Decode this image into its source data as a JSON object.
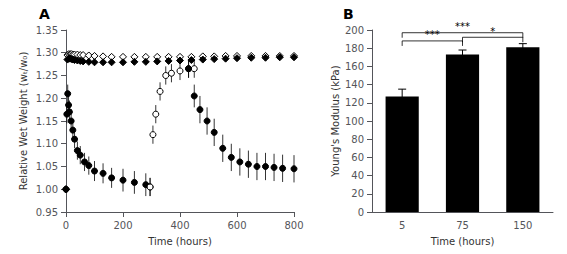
{
  "chart_data": [
    {
      "type": "scatter",
      "title": "A",
      "xlabel": "Time (hours)",
      "ylabel": "Relative Wet Weight (wₜ/w₀)",
      "xlim": [
        0,
        800
      ],
      "xticks": [
        0,
        200,
        400,
        600,
        800
      ],
      "ylim": [
        0.95,
        1.35
      ],
      "yticks": [
        0.95,
        {
          "value": 1.0,
          "label": "1.00"
        },
        1.05,
        {
          "value": 1.1,
          "label": "1.10"
        },
        1.15,
        {
          "value": 1.2,
          "label": "1.20"
        },
        1.25,
        {
          "value": 1.3,
          "label": "1.30"
        },
        1.35
      ],
      "grid": false,
      "series": [
        {
          "type": "scatter",
          "marker": "open_diamond",
          "color": "#000000",
          "x": [
            0,
            5,
            10,
            15,
            20,
            25,
            30,
            40,
            50,
            60,
            80,
            100,
            130,
            160,
            200,
            240,
            280,
            320,
            360,
            400,
            440,
            480,
            520,
            560,
            600,
            650,
            700,
            750,
            800
          ],
          "values": [
            1.0,
            1.295,
            1.297,
            1.297,
            1.297,
            1.296,
            1.296,
            1.296,
            1.295,
            1.295,
            1.294,
            1.293,
            1.292,
            1.291,
            1.291,
            1.291,
            1.291,
            1.291,
            1.291,
            1.291,
            1.291,
            1.292,
            1.292,
            1.293,
            1.293,
            1.293,
            1.293,
            1.293,
            1.293
          ],
          "errors": [
            0,
            0.004,
            0.003,
            0.003,
            0.003,
            0.003,
            0.003,
            0.003,
            0.003,
            0.003,
            0.003,
            0.003,
            0.003,
            0.003,
            0.003,
            0.003,
            0.003,
            0.003,
            0.003,
            0.003,
            0.003,
            0.003,
            0.003,
            0.003,
            0.003,
            0.003,
            0.003,
            0.003,
            0.003
          ]
        },
        {
          "type": "scatter",
          "marker": "filled_diamond",
          "color": "#000000",
          "x": [
            0,
            5,
            10,
            15,
            20,
            25,
            30,
            40,
            50,
            60,
            80,
            100,
            130,
            160,
            200,
            240,
            280,
            320,
            360,
            400,
            440,
            480,
            520,
            560,
            600,
            650,
            700,
            750,
            800
          ],
          "values": [
            1.0,
            1.285,
            1.287,
            1.287,
            1.286,
            1.285,
            1.284,
            1.283,
            1.282,
            1.281,
            1.28,
            1.279,
            1.279,
            1.279,
            1.279,
            1.28,
            1.28,
            1.281,
            1.282,
            1.283,
            1.284,
            1.285,
            1.286,
            1.287,
            1.288,
            1.289,
            1.289,
            1.29,
            1.29
          ],
          "errors": [
            0,
            0.005,
            0.004,
            0.004,
            0.004,
            0.004,
            0.004,
            0.004,
            0.004,
            0.004,
            0.004,
            0.004,
            0.004,
            0.004,
            0.004,
            0.004,
            0.004,
            0.004,
            0.004,
            0.004,
            0.004,
            0.004,
            0.004,
            0.004,
            0.004,
            0.004,
            0.004,
            0.004,
            0.004
          ]
        },
        {
          "type": "scatter",
          "marker": "filled_circle",
          "color": "#000000",
          "x": [
            0,
            3,
            6,
            9,
            12,
            18,
            24,
            30,
            40,
            50,
            65,
            80,
            100,
            130,
            160,
            200,
            240,
            280,
            295
          ],
          "values": [
            1.0,
            1.165,
            1.21,
            1.185,
            1.17,
            1.15,
            1.13,
            1.11,
            1.085,
            1.075,
            1.06,
            1.052,
            1.04,
            1.035,
            1.025,
            1.02,
            1.015,
            1.01,
            1.005
          ],
          "errors": [
            0,
            0.02,
            0.02,
            0.025,
            0.025,
            0.025,
            0.025,
            0.02,
            0.02,
            0.02,
            0.02,
            0.02,
            0.022,
            0.022,
            0.022,
            0.025,
            0.025,
            0.025,
            0.02
          ]
        },
        {
          "type": "scatter",
          "marker": "open_circle",
          "color": "#000000",
          "x": [
            295,
            305,
            315,
            330,
            350,
            370,
            400,
            430,
            450
          ],
          "values": [
            1.005,
            1.12,
            1.165,
            1.215,
            1.25,
            1.255,
            1.26,
            1.265,
            1.265
          ],
          "errors": [
            0.02,
            0.02,
            0.02,
            0.02,
            0.02,
            0.02,
            0.02,
            0.02,
            0.02
          ]
        },
        {
          "type": "scatter",
          "marker": "filled_circle",
          "color": "#000000",
          "x": [
            430,
            450,
            470,
            495,
            520,
            550,
            580,
            610,
            640,
            670,
            700,
            730,
            760,
            800
          ],
          "values": [
            1.265,
            1.205,
            1.175,
            1.15,
            1.125,
            1.09,
            1.07,
            1.06,
            1.055,
            1.05,
            1.05,
            1.048,
            1.046,
            1.045
          ],
          "errors": [
            0.02,
            0.025,
            0.03,
            0.03,
            0.03,
            0.03,
            0.03,
            0.03,
            0.03,
            0.03,
            0.03,
            0.03,
            0.03,
            0.03
          ]
        }
      ]
    },
    {
      "type": "bar",
      "title": "B",
      "xlabel": "Time (hours)",
      "ylabel": "Young's Modulus (kPa)",
      "categories": [
        "5",
        "75",
        "150"
      ],
      "values": [
        127,
        173,
        181
      ],
      "errors": [
        8,
        5,
        4
      ],
      "color": "#000000",
      "ylim": [
        0,
        200
      ],
      "yticks": [
        0,
        20,
        40,
        60,
        80,
        100,
        120,
        140,
        160,
        180,
        200
      ],
      "grid": false,
      "annotations": [
        {
          "label": "***",
          "x1": "5",
          "x2": "75",
          "y": 188
        },
        {
          "label": "***",
          "x1": "5",
          "x2": "150",
          "y": 197
        },
        {
          "label": "*",
          "x1": "75",
          "x2": "150",
          "y": 192
        }
      ]
    }
  ]
}
